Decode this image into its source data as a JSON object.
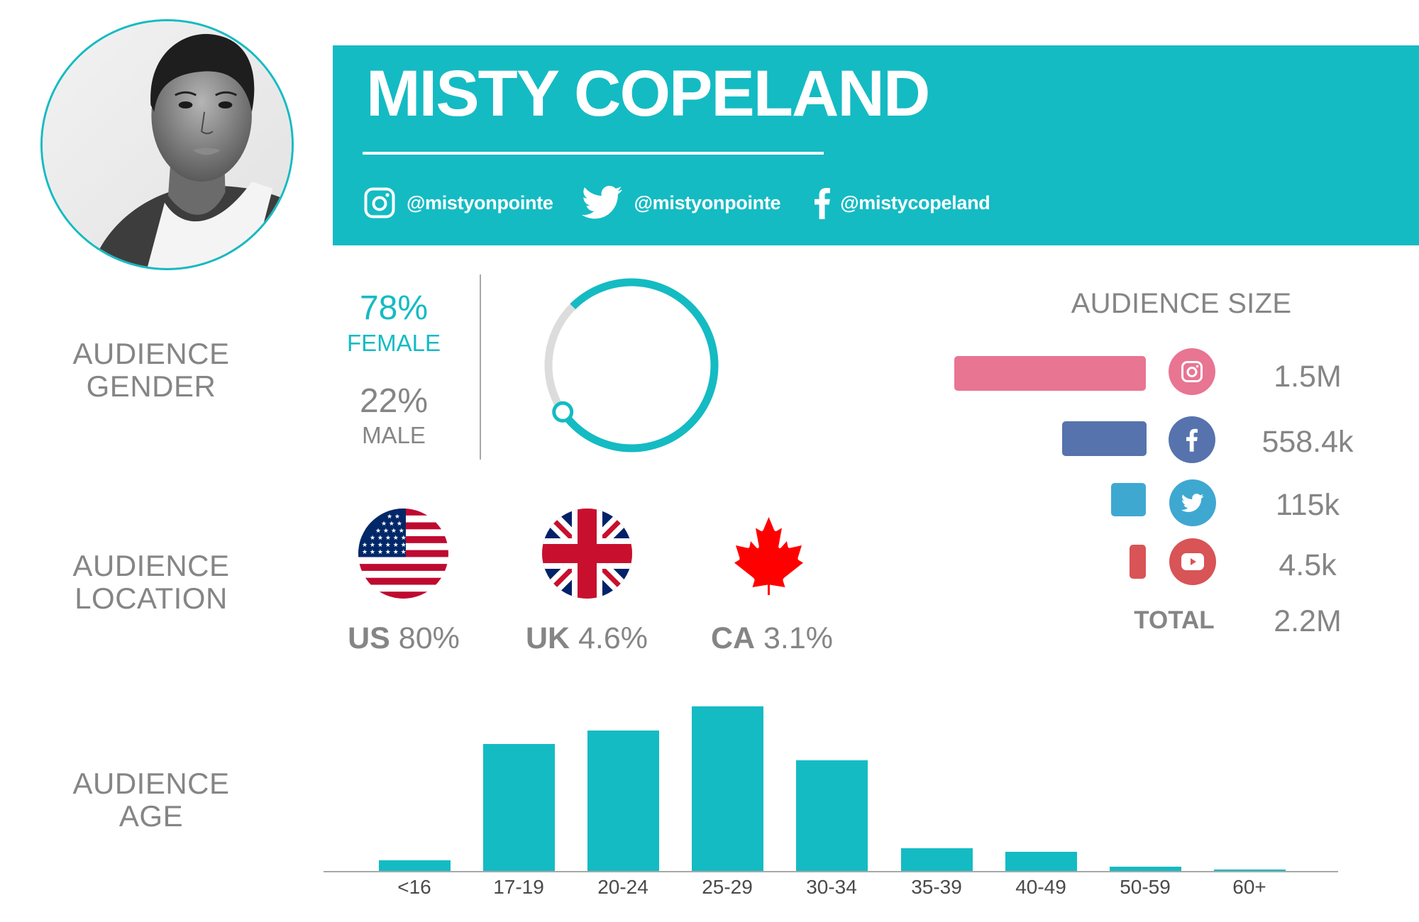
{
  "profile": {
    "name": "MISTY COPELAND",
    "avatar_alt": "portrait-photo",
    "handles": [
      {
        "platform": "instagram",
        "icon": "instagram-icon",
        "handle": "@mistyonpointe"
      },
      {
        "platform": "twitter",
        "icon": "twitter-icon",
        "handle": "@mistyonpointe"
      },
      {
        "platform": "facebook",
        "icon": "facebook-icon",
        "handle": "@mistycopeland"
      }
    ]
  },
  "colors": {
    "accent": "#14bbc3",
    "label_gray": "#858585",
    "track_gray": "#dcdcdc",
    "instagram": "#e87592",
    "facebook": "#5673ad",
    "twitter": "#3fa8d1",
    "youtube": "#d85456"
  },
  "gender": {
    "label_line1": "AUDIENCE",
    "label_line2": "GENDER",
    "female_pct": "78%",
    "female_label": "FEMALE",
    "male_pct": "22%",
    "male_label": "MALE"
  },
  "location": {
    "label_line1": "AUDIENCE",
    "label_line2": "LOCATION",
    "countries": [
      {
        "code": "US",
        "pct": "80%",
        "flag": "us-flag-icon"
      },
      {
        "code": "UK",
        "pct": "4.6%",
        "flag": "uk-flag-icon"
      },
      {
        "code": "CA",
        "pct": "3.1%",
        "flag": "canada-maple-leaf-icon"
      }
    ]
  },
  "audience_size": {
    "title": "AUDIENCE SIZE",
    "rows": [
      {
        "platform": "instagram",
        "icon": "instagram-icon",
        "value": "1.5M"
      },
      {
        "platform": "facebook",
        "icon": "facebook-icon",
        "value": "558.4k"
      },
      {
        "platform": "twitter",
        "icon": "twitter-icon",
        "value": "115k"
      },
      {
        "platform": "youtube",
        "icon": "youtube-icon",
        "value": "4.5k"
      }
    ],
    "total_label": "TOTAL",
    "total_value": "2.2M"
  },
  "age": {
    "label_line1": "AUDIENCE",
    "label_line2": "AGE"
  },
  "chart_data": [
    {
      "type": "pie",
      "title": "Audience Gender",
      "categories": [
        "Female",
        "Male"
      ],
      "values": [
        78,
        22
      ],
      "style": "ring"
    },
    {
      "type": "bar",
      "orientation": "horizontal",
      "title": "Audience Size",
      "categories": [
        "Instagram",
        "Facebook",
        "Twitter",
        "YouTube"
      ],
      "values": [
        1500000,
        558400,
        115000,
        4500
      ],
      "value_labels": [
        "1.5M",
        "558.4k",
        "115k",
        "4.5k"
      ],
      "total": "2.2M"
    },
    {
      "type": "bar",
      "title": "Audience Location",
      "categories": [
        "US",
        "UK",
        "CA"
      ],
      "values": [
        80,
        4.6,
        3.1
      ],
      "unit": "%"
    },
    {
      "type": "bar",
      "title": "Audience Age",
      "categories": [
        "<16",
        "17-19",
        "20-24",
        "25-29",
        "30-34",
        "35-39",
        "40-49",
        "50-59",
        "60+"
      ],
      "values": [
        1.5,
        18,
        19.9,
        23.3,
        15.7,
        3.2,
        2.7,
        0.6,
        0.2
      ],
      "xlabel": "",
      "ylabel": "",
      "grid": false,
      "note": "values are relative heights estimated from pixels (no y-axis shown)"
    }
  ]
}
